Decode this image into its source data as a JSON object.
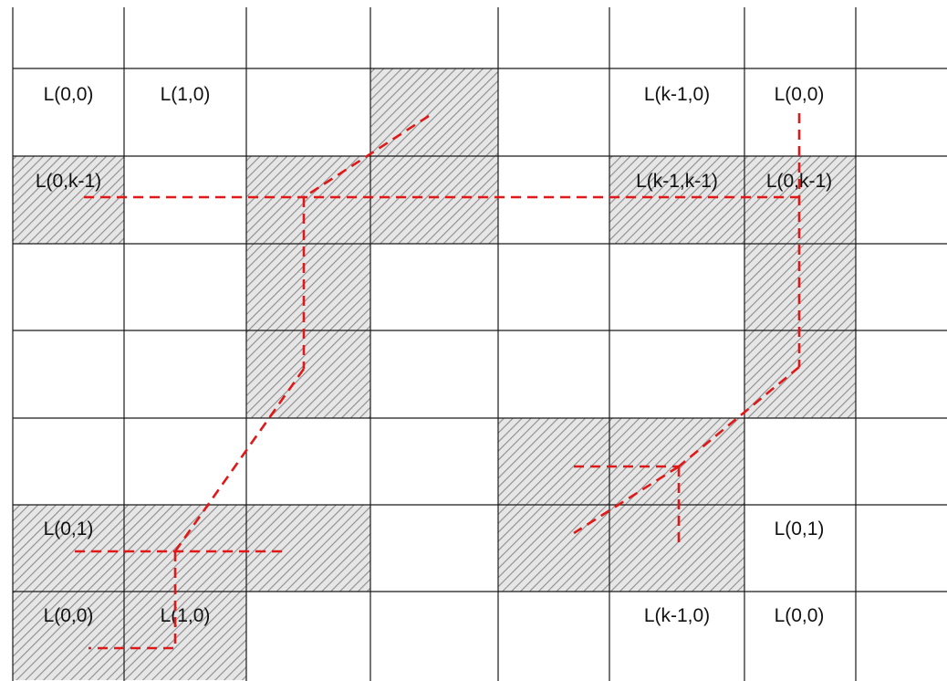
{
  "colors": {
    "background": "#ffffff",
    "grid": "#1a1a1a",
    "shaded_fill": "#e6e6e6",
    "hatch": "#8c8c8c",
    "path": "#e01818",
    "text": "#111111"
  },
  "labels": {
    "top_left_00": "L(0,0)",
    "top_left_10": "L(1,0)",
    "top_right_k10": "L(k-1,0)",
    "top_right_00": "L(0,0)",
    "mid_left_0k1": "L(0,k-1)",
    "mid_right_k1k1": "L(k-1,k-1)",
    "mid_right_0k1": "L(0,k-1)",
    "lower_left_01": "L(0,1)",
    "lower_right_01": "L(0,1)",
    "bottom_left_00": "L(0,0)",
    "bottom_left_10": "L(1,0)",
    "bottom_right_k10": "L(k-1,0)",
    "bottom_right_00": "L(0,0)"
  },
  "shaded_cells": [
    {
      "col": 3,
      "row": 1
    },
    {
      "col": 0,
      "row": 2
    },
    {
      "col": 2,
      "row": 2
    },
    {
      "col": 3,
      "row": 2
    },
    {
      "col": 5,
      "row": 2
    },
    {
      "col": 6,
      "row": 2
    },
    {
      "col": 2,
      "row": 3
    },
    {
      "col": 6,
      "row": 3
    },
    {
      "col": 2,
      "row": 4
    },
    {
      "col": 6,
      "row": 4
    },
    {
      "col": 4,
      "row": 5
    },
    {
      "col": 5,
      "row": 5
    },
    {
      "col": 0,
      "row": 6
    },
    {
      "col": 1,
      "row": 6
    },
    {
      "col": 2,
      "row": 6
    },
    {
      "col": 4,
      "row": 6
    },
    {
      "col": 5,
      "row": 6
    },
    {
      "col": 0,
      "row": 7
    },
    {
      "col": 1,
      "row": 7
    }
  ]
}
